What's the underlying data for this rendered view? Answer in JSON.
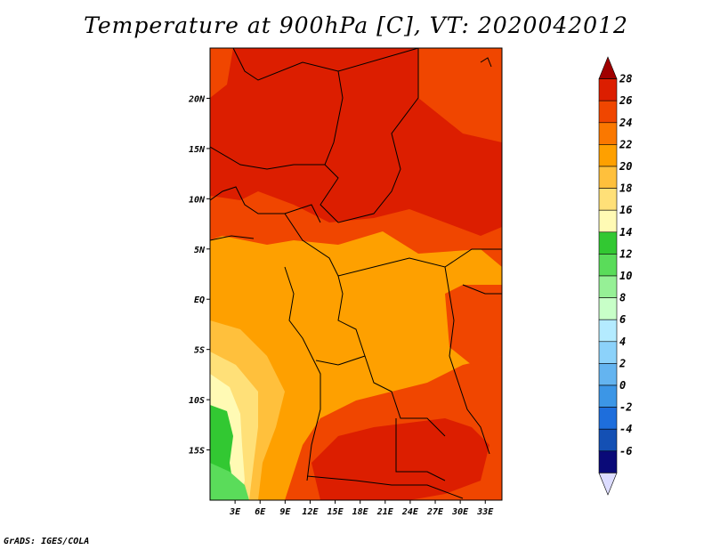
{
  "title": "Temperature at 900hPa [C], VT: 2020042012",
  "credit": "GrADS: IGES/COLA",
  "map": {
    "lon_range": [
      0,
      35
    ],
    "lat_range": [
      -20,
      25
    ],
    "lat_labels": [
      {
        "lat": 20,
        "text": "20N"
      },
      {
        "lat": 15,
        "text": "15N"
      },
      {
        "lat": 10,
        "text": "10N"
      },
      {
        "lat": 5,
        "text": "5N"
      },
      {
        "lat": 0,
        "text": "EQ"
      },
      {
        "lat": -5,
        "text": "5S"
      },
      {
        "lat": -10,
        "text": "10S"
      },
      {
        "lat": -15,
        "text": "15S"
      }
    ],
    "lon_labels": [
      {
        "lon": 3,
        "text": "3E"
      },
      {
        "lon": 6,
        "text": "6E"
      },
      {
        "lon": 9,
        "text": "9E"
      },
      {
        "lon": 12,
        "text": "12E"
      },
      {
        "lon": 15,
        "text": "15E"
      },
      {
        "lon": 18,
        "text": "18E"
      },
      {
        "lon": 21,
        "text": "21E"
      },
      {
        "lon": 24,
        "text": "24E"
      },
      {
        "lon": 27,
        "text": "27E"
      },
      {
        "lon": 30,
        "text": "30E"
      },
      {
        "lon": 33,
        "text": "33E"
      }
    ]
  },
  "colorbar": {
    "levels": [
      "28",
      "26",
      "24",
      "22",
      "20",
      "18",
      "16",
      "14",
      "12",
      "10",
      "8",
      "6",
      "4",
      "2",
      "0",
      "-2",
      "-4",
      "-6"
    ],
    "colors": [
      "#a00000",
      "#dc1e00",
      "#f04600",
      "#fa7800",
      "#fea000",
      "#ffc03c",
      "#ffe078",
      "#fffab4",
      "#32c832",
      "#5adc5a",
      "#96f096",
      "#c8ffc8",
      "#b4ebff",
      "#8cd2fa",
      "#64b4f0",
      "#3c96e6",
      "#1e6edc",
      "#1450b4",
      "#0a0a78",
      "#dcdcff"
    ]
  }
}
